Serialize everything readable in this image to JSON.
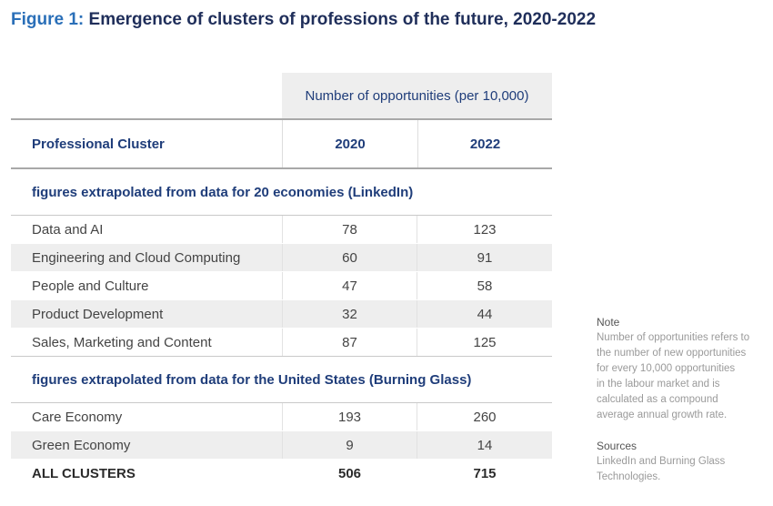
{
  "figure": {
    "number": "Figure 1:",
    "title": "Emergence of clusters of professions of the future, 2020-2022"
  },
  "table": {
    "span_header": "Number of opportunities (per 10,000)",
    "col_cluster": "Professional Cluster",
    "col_2020": "2020",
    "col_2022": "2022",
    "section1": {
      "label": "figures extrapolated from data for 20 economies (LinkedIn)",
      "rows": [
        {
          "name": "Data and AI",
          "v2020": "78",
          "v2022": "123"
        },
        {
          "name": "Engineering and Cloud Computing",
          "v2020": "60",
          "v2022": "91"
        },
        {
          "name": "People and Culture",
          "v2020": "47",
          "v2022": "58"
        },
        {
          "name": "Product Development",
          "v2020": "32",
          "v2022": "44"
        },
        {
          "name": "Sales, Marketing and Content",
          "v2020": "87",
          "v2022": "125"
        }
      ]
    },
    "section2": {
      "label": "figures extrapolated from data for the United States (Burning Glass)",
      "rows": [
        {
          "name": "Care Economy",
          "v2020": "193",
          "v2022": "260"
        },
        {
          "name": "Green Economy",
          "v2020": "9",
          "v2022": "14"
        }
      ]
    },
    "total": {
      "name": "ALL CLUSTERS",
      "v2020": "506",
      "v2022": "715"
    }
  },
  "note": {
    "label": "Note",
    "lines": [
      "Number of opportunities refers to",
      "the number of new opportunities",
      "for every 10,000 opportunities",
      "in the labour market and is",
      "calculated as a compound",
      "average annual growth rate."
    ],
    "sources_label": "Sources",
    "sources_lines": [
      "LinkedIn and Burning Glass",
      "Technologies."
    ]
  },
  "colors": {
    "title": "#1f2e5a",
    "figure_number": "#2a6fb8",
    "header_text": "#1f3d7a",
    "alt_row": "#eeeeee"
  }
}
